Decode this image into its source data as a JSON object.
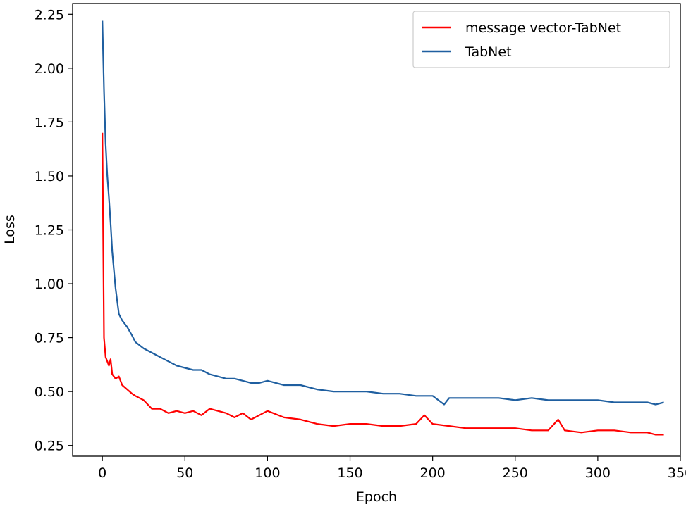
{
  "chart_data": {
    "type": "line",
    "title": "",
    "xlabel": "Epoch",
    "ylabel": "Loss",
    "xlim": [
      -18,
      350
    ],
    "ylim": [
      0.2,
      2.3
    ],
    "xticks": [
      0,
      50,
      100,
      150,
      200,
      250,
      300,
      350
    ],
    "xtick_labels": [
      "0",
      "50",
      "100",
      "150",
      "200",
      "250",
      "300",
      "350"
    ],
    "yticks": [
      0.25,
      0.5,
      0.75,
      1.0,
      1.25,
      1.5,
      1.75,
      2.0,
      2.25
    ],
    "ytick_labels": [
      "0.25",
      "0.50",
      "0.75",
      "1.00",
      "1.25",
      "1.50",
      "1.75",
      "2.00",
      "2.25"
    ],
    "grid": false,
    "legend_position": "top-right",
    "series": [
      {
        "name": "message vector-TabNet",
        "color": "#ff0000",
        "x": [
          0,
          1,
          2,
          3,
          4,
          5,
          6,
          8,
          10,
          12,
          15,
          18,
          20,
          25,
          30,
          35,
          40,
          45,
          50,
          55,
          60,
          65,
          70,
          75,
          80,
          85,
          90,
          95,
          100,
          110,
          120,
          130,
          140,
          150,
          160,
          170,
          180,
          190,
          195,
          200,
          210,
          220,
          230,
          240,
          250,
          260,
          270,
          276,
          280,
          290,
          300,
          310,
          320,
          330,
          335,
          340
        ],
        "y": [
          1.7,
          0.75,
          0.66,
          0.64,
          0.62,
          0.65,
          0.58,
          0.56,
          0.57,
          0.53,
          0.51,
          0.49,
          0.48,
          0.46,
          0.42,
          0.42,
          0.4,
          0.41,
          0.4,
          0.41,
          0.39,
          0.42,
          0.41,
          0.4,
          0.38,
          0.4,
          0.37,
          0.39,
          0.41,
          0.38,
          0.37,
          0.35,
          0.34,
          0.35,
          0.35,
          0.34,
          0.34,
          0.35,
          0.39,
          0.35,
          0.34,
          0.33,
          0.33,
          0.33,
          0.33,
          0.32,
          0.32,
          0.37,
          0.32,
          0.31,
          0.32,
          0.32,
          0.31,
          0.31,
          0.3,
          0.3
        ]
      },
      {
        "name": "TabNet",
        "color": "#1f5fa0",
        "x": [
          0,
          1,
          2,
          3,
          4,
          5,
          6,
          8,
          10,
          12,
          15,
          18,
          20,
          25,
          30,
          35,
          40,
          45,
          50,
          55,
          60,
          65,
          70,
          75,
          80,
          85,
          90,
          95,
          100,
          110,
          120,
          130,
          140,
          150,
          160,
          170,
          180,
          190,
          200,
          207,
          210,
          220,
          230,
          240,
          250,
          260,
          270,
          280,
          290,
          300,
          310,
          320,
          330,
          335,
          340
        ],
        "y": [
          2.22,
          1.9,
          1.65,
          1.5,
          1.4,
          1.28,
          1.15,
          0.98,
          0.86,
          0.83,
          0.8,
          0.76,
          0.73,
          0.7,
          0.68,
          0.66,
          0.64,
          0.62,
          0.61,
          0.6,
          0.6,
          0.58,
          0.57,
          0.56,
          0.56,
          0.55,
          0.54,
          0.54,
          0.55,
          0.53,
          0.53,
          0.51,
          0.5,
          0.5,
          0.5,
          0.49,
          0.49,
          0.48,
          0.48,
          0.44,
          0.47,
          0.47,
          0.47,
          0.47,
          0.46,
          0.47,
          0.46,
          0.46,
          0.46,
          0.46,
          0.45,
          0.45,
          0.45,
          0.44,
          0.45
        ]
      }
    ]
  }
}
